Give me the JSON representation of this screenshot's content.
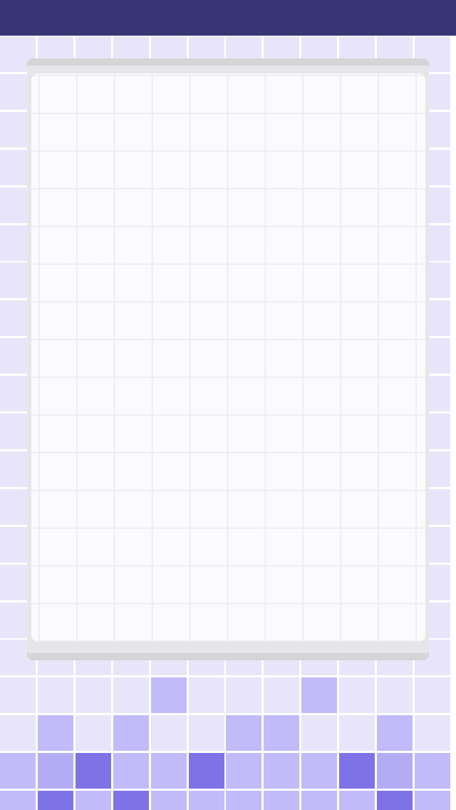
{
  "colors": {
    "top_bar": "#383574",
    "grid_line": "#ffffff",
    "tile_empty": "#e8e5fa",
    "tile_light": "#c1bbfa",
    "tile_medium": "#b1acf4",
    "tile_dark": "#7e72e7",
    "panel_card": "#fbfbfe",
    "panel_frame": "#d5d5d8"
  },
  "board": {
    "columns": 12,
    "rows": 21,
    "tile_rows": [
      [
        "e",
        "e",
        "e",
        "e",
        "e",
        "e",
        "e",
        "e",
        "e",
        "e",
        "e",
        "e"
      ],
      [
        "e",
        "e",
        "e",
        "e",
        "e",
        "e",
        "e",
        "e",
        "e",
        "e",
        "e",
        "e"
      ],
      [
        "e",
        "e",
        "e",
        "e",
        "e",
        "e",
        "e",
        "e",
        "e",
        "e",
        "e",
        "e"
      ],
      [
        "e",
        "e",
        "e",
        "e",
        "e",
        "e",
        "e",
        "e",
        "e",
        "e",
        "e",
        "e"
      ],
      [
        "e",
        "e",
        "e",
        "e",
        "e",
        "e",
        "e",
        "e",
        "e",
        "e",
        "e",
        "e"
      ],
      [
        "e",
        "e",
        "e",
        "e",
        "e",
        "e",
        "e",
        "e",
        "e",
        "e",
        "e",
        "e"
      ],
      [
        "e",
        "e",
        "e",
        "e",
        "e",
        "e",
        "e",
        "e",
        "e",
        "e",
        "e",
        "e"
      ],
      [
        "e",
        "e",
        "e",
        "e",
        "e",
        "e",
        "e",
        "e",
        "e",
        "e",
        "e",
        "e"
      ],
      [
        "e",
        "e",
        "e",
        "e",
        "e",
        "e",
        "e",
        "e",
        "e",
        "e",
        "e",
        "e"
      ],
      [
        "e",
        "e",
        "e",
        "e",
        "e",
        "e",
        "e",
        "e",
        "e",
        "e",
        "e",
        "e"
      ],
      [
        "e",
        "e",
        "e",
        "e",
        "e",
        "e",
        "e",
        "e",
        "e",
        "e",
        "e",
        "e"
      ],
      [
        "e",
        "e",
        "e",
        "e",
        "e",
        "e",
        "e",
        "e",
        "e",
        "e",
        "e",
        "e"
      ],
      [
        "e",
        "e",
        "e",
        "e",
        "e",
        "e",
        "e",
        "e",
        "e",
        "e",
        "e",
        "e"
      ],
      [
        "e",
        "e",
        "e",
        "e",
        "e",
        "e",
        "e",
        "e",
        "e",
        "e",
        "e",
        "e"
      ],
      [
        "e",
        "e",
        "e",
        "e",
        "e",
        "e",
        "e",
        "e",
        "e",
        "e",
        "e",
        "e"
      ],
      [
        "e",
        "e",
        "e",
        "e",
        "e",
        "e",
        "e",
        "e",
        "e",
        "e",
        "e",
        "e"
      ],
      [
        "e",
        "e",
        "e",
        "e",
        "e",
        "e",
        "e",
        "e",
        "e",
        "e",
        "e",
        "e"
      ],
      [
        "e",
        "e",
        "e",
        "e",
        "l",
        "e",
        "e",
        "e",
        "l",
        "e",
        "e",
        "e"
      ],
      [
        "e",
        "l",
        "e",
        "l",
        "e",
        "e",
        "l",
        "l",
        "e",
        "e",
        "l",
        "e"
      ],
      [
        "l",
        "m",
        "d",
        "l",
        "l",
        "d",
        "l",
        "l",
        "l",
        "d",
        "m",
        "l"
      ],
      [
        "l",
        "d",
        "l",
        "d",
        "l",
        "l",
        "l",
        "l",
        "l",
        "l",
        "d",
        "l"
      ]
    ]
  }
}
